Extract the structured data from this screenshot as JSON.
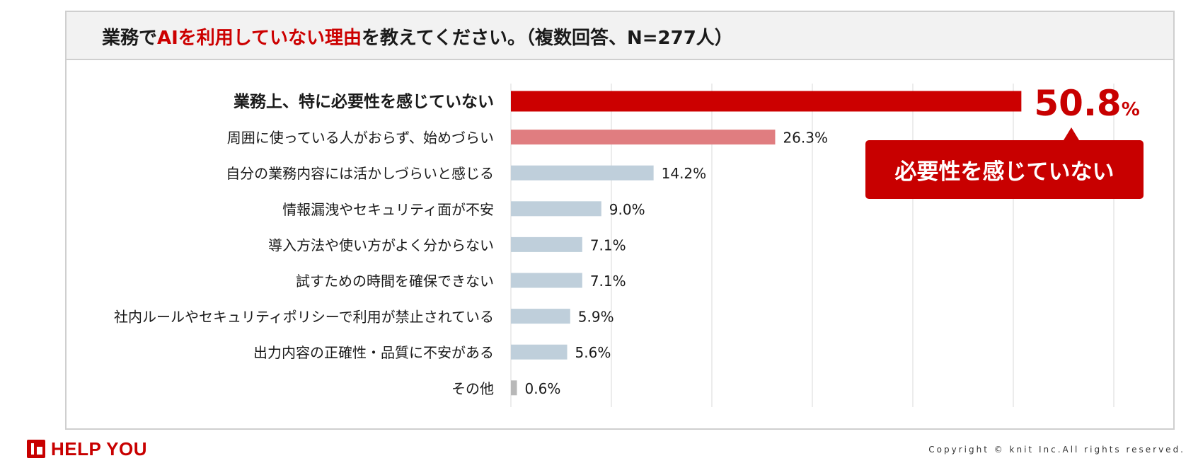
{
  "title": {
    "prefix": "業務で",
    "highlight": "AIを利用していない理由",
    "suffix": "を教えてください。（複数回答、N=277人）"
  },
  "colors": {
    "top_bar": "#cc0000",
    "second_bar": "#e07d80",
    "other_bar": "#bfcfdb",
    "other_category_bar": "#b8b8b8",
    "accent": "#c80000",
    "gridline": "#d9d9d9"
  },
  "chart_data": {
    "type": "bar",
    "orientation": "horizontal",
    "categories": [
      "業務上、特に必要性を感じていない",
      "周囲に使っている人がおらず、始めづらい",
      "自分の業務内容には活かしづらいと感じる",
      "情報漏洩やセキュリティ面が不安",
      "導入方法や使い方がよく分からない",
      "試すための時間を確保できない",
      "社内ルールやセキュリティポリシーで利用が禁止されている",
      "出力内容の正確性・品質に不安がある",
      "その他"
    ],
    "values": [
      50.8,
      26.3,
      14.2,
      9.0,
      7.1,
      7.1,
      5.9,
      5.6,
      0.6
    ],
    "value_labels": [
      "50.8",
      "26.3%",
      "14.2%",
      "9.0%",
      "7.1%",
      "7.1%",
      "5.9%",
      "5.6%",
      "0.6%"
    ],
    "top_value_unit": "%",
    "xlim": [
      0,
      60
    ],
    "grid": true,
    "legend": "none"
  },
  "callout": {
    "text": "必要性を感じていない"
  },
  "footer": {
    "logo_text": "HELP YOU",
    "copyright": "Copyright © knit Inc.All rights reserved."
  }
}
